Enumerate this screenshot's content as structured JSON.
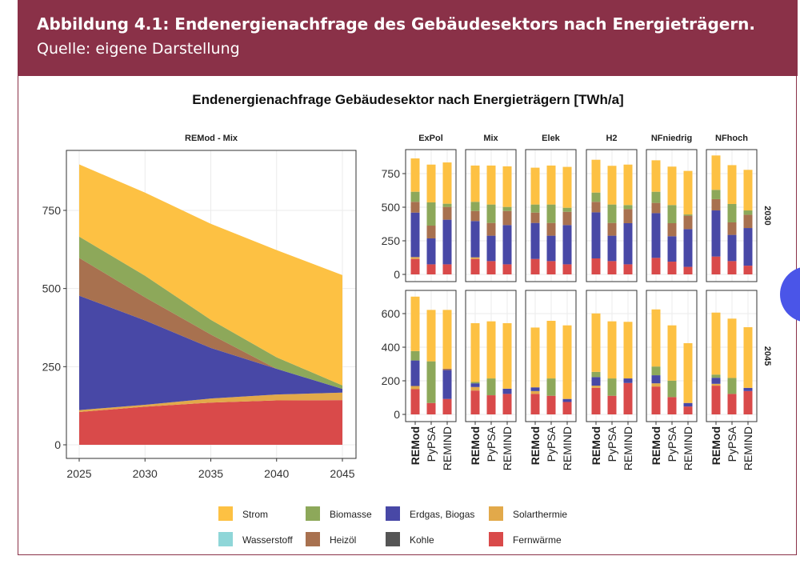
{
  "header": {
    "title": "Abbildung 4.1: Endenergienachfrage des Gebäudesektors nach Energieträgern.",
    "source": "Quelle: eigene Darstellung"
  },
  "figure_title": "Endenergienachfrage Gebäudesektor nach Energieträgern [TWh/a]",
  "colors": {
    "Strom": "#FDC143",
    "Biomasse": "#8DA85A",
    "Erdgas, Biogas": "#4848A6",
    "Solarthermie": "#E2A94A",
    "Wasserstoff": "#8FD6D8",
    "Heizöl": "#A8714F",
    "Kohle": "#555555",
    "Fernwärme": "#D94A4A",
    "header": "#8A3148"
  },
  "legend": [
    [
      "Strom",
      "Biomasse",
      "Erdgas, Biogas",
      "Solarthermie"
    ],
    [
      "Wasserstoff",
      "Heizöl",
      "Kohle",
      "Fernwärme"
    ]
  ],
  "chart_data": [
    {
      "type": "area",
      "title": "REMod - Mix",
      "x": [
        2025,
        2030,
        2035,
        2040,
        2045
      ],
      "xticks": [
        "2025",
        "2030",
        "2035",
        "2040",
        "2045"
      ],
      "yticks": [
        "0",
        "250",
        "500",
        "750"
      ],
      "ylim": [
        0,
        920
      ],
      "grid": true,
      "series": [
        {
          "name": "Fernwärme",
          "values": [
            105,
            122,
            135,
            142,
            143
          ]
        },
        {
          "name": "Solarthermie",
          "values": [
            6,
            6,
            13,
            19,
            24
          ]
        },
        {
          "name": "Erdgas, Biogas",
          "values": [
            366,
            270,
            162,
            82,
            12
          ]
        },
        {
          "name": "Heizöl",
          "values": [
            121,
            74,
            43,
            0,
            0
          ]
        },
        {
          "name": "Biomasse",
          "values": [
            68,
            69,
            47,
            37,
            11
          ]
        },
        {
          "name": "Strom",
          "values": [
            231,
            266,
            307,
            343,
            353
          ]
        }
      ]
    },
    {
      "type": "bar",
      "stacked": true,
      "grid": true,
      "series_order": [
        "Fernwärme",
        "Solarthermie",
        "Erdgas, Biogas",
        "Heizöl",
        "Biomasse",
        "Strom"
      ],
      "categories": [
        "REMod",
        "PyPSA",
        "REMIND"
      ],
      "facets": [
        "ExPol",
        "Mix",
        "Elek",
        "H2",
        "NFniedrig",
        "NFhoch"
      ],
      "rows": [
        {
          "label": "2030",
          "yticks": [
            "0",
            "250",
            "500",
            "750"
          ],
          "panels": [
            [
              [
                115,
                14,
                331,
                80,
                75,
                248
              ],
              [
                75,
                0,
                193,
                95,
                173,
                281
              ],
              [
                75,
                0,
                332,
                95,
                24,
                307
              ]
            ],
            [
              [
                115,
                12,
                270,
                75,
                68,
                270
              ],
              [
                99,
                0,
                189,
                95,
                137,
                290
              ],
              [
                75,
                0,
                292,
                105,
                30,
                302
              ]
            ],
            [
              [
                115,
                0,
                268,
                77,
                60,
                274
              ],
              [
                99,
                0,
                189,
                95,
                137,
                290
              ],
              [
                75,
                0,
                292,
                99,
                30,
                304
              ]
            ],
            [
              [
                119,
                0,
                343,
                78,
                69,
                244
              ],
              [
                99,
                0,
                189,
                95,
                137,
                288
              ],
              [
                75,
                0,
                306,
                105,
                30,
                301
              ]
            ],
            [
              [
                123,
                0,
                333,
                76,
                83,
                234
              ],
              [
                95,
                0,
                189,
                97,
                135,
                286
              ],
              [
                56,
                0,
                281,
                100,
                9,
                324
              ]
            ],
            [
              [
                133,
                0,
                343,
                84,
                69,
                256
              ],
              [
                99,
                0,
                195,
                93,
                137,
                289
              ],
              [
                65,
                0,
                280,
                99,
                32,
                302
              ]
            ]
          ]
        },
        {
          "label": "2045",
          "yticks": [
            "0",
            "200",
            "400",
            "600"
          ],
          "panels": [
            [
              [
                150,
                19,
                152,
                0,
                56,
                324
              ],
              [
                68,
                0,
                0,
                0,
                248,
                306
              ],
              [
                92,
                0,
                172,
                8,
                0,
                350
              ]
            ],
            [
              [
                142,
                21,
                22,
                0,
                8,
                350
              ],
              [
                114,
                0,
                0,
                0,
                100,
                340
              ],
              [
                122,
                0,
                31,
                0,
                0,
                390
              ]
            ],
            [
              [
                122,
                17,
                22,
                0,
                0,
                356
              ],
              [
                111,
                0,
                0,
                0,
                103,
                343
              ],
              [
                74,
                0,
                18,
                0,
                0,
                438
              ]
            ],
            [
              [
                158,
                13,
                51,
                0,
                31,
                348
              ],
              [
                111,
                0,
                0,
                0,
                103,
                340
              ],
              [
                187,
                0,
                27,
                0,
                0,
                337
              ]
            ],
            [
              [
                166,
                19,
                48,
                0,
                52,
                340
              ],
              [
                103,
                0,
                0,
                0,
                98,
                329
              ],
              [
                47,
                0,
                21,
                0,
                0,
                356
              ]
            ],
            [
              [
                171,
                11,
                36,
                0,
                19,
                369
              ],
              [
                122,
                0,
                0,
                0,
                95,
                353
              ],
              [
                139,
                0,
                19,
                0,
                0,
                361
              ]
            ]
          ]
        }
      ]
    }
  ]
}
